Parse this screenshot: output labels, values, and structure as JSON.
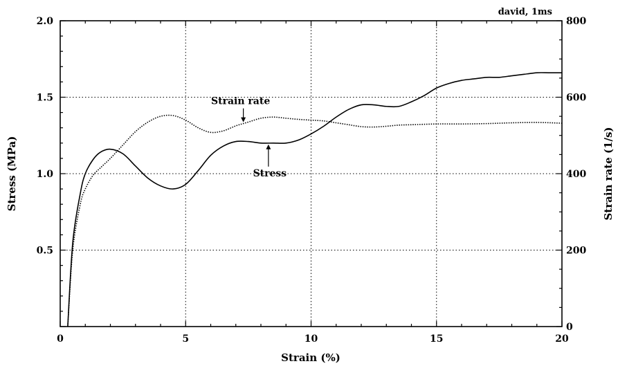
{
  "corner_label": "david, 1ms",
  "chart_data": {
    "type": "line",
    "xlabel": "Strain (%)",
    "ylabel": "Stress (MPa)",
    "y2label": "Strain rate (1/s)",
    "xlim": [
      0,
      20
    ],
    "ylim": [
      0,
      2.0
    ],
    "y2lim": [
      0,
      800
    ],
    "x_ticks": [
      0,
      5,
      10,
      15,
      20
    ],
    "x_tick_labels": [
      "0",
      "5",
      "10",
      "15",
      "20"
    ],
    "y_ticks": [
      0.5,
      1.0,
      1.5,
      2.0
    ],
    "y_tick_labels": [
      "0.5",
      "1.0",
      "1.5",
      "2.0"
    ],
    "y2_ticks": [
      0,
      200,
      400,
      600,
      800
    ],
    "y2_tick_labels": [
      "0",
      "200",
      "400",
      "600",
      "800"
    ],
    "grid": true,
    "series": [
      {
        "name": "Stress",
        "axis": "left",
        "style": "solid",
        "x": [
          0.3,
          0.5,
          0.8,
          1.0,
          1.3,
          1.6,
          2.0,
          2.5,
          3.0,
          3.5,
          4.0,
          4.5,
          5.0,
          5.5,
          6.0,
          6.5,
          7.0,
          7.5,
          8.0,
          8.5,
          9.0,
          9.5,
          10.0,
          10.5,
          11.0,
          11.5,
          12.0,
          12.5,
          13.0,
          13.5,
          14.0,
          14.5,
          15.0,
          15.5,
          16.0,
          16.5,
          17.0,
          17.5,
          18.0,
          18.5,
          19.0,
          19.5,
          20.0
        ],
        "values": [
          0.0,
          0.55,
          0.87,
          1.0,
          1.09,
          1.14,
          1.16,
          1.13,
          1.05,
          0.97,
          0.92,
          0.9,
          0.93,
          1.02,
          1.12,
          1.18,
          1.21,
          1.21,
          1.2,
          1.2,
          1.2,
          1.22,
          1.26,
          1.31,
          1.37,
          1.42,
          1.45,
          1.45,
          1.44,
          1.44,
          1.47,
          1.51,
          1.56,
          1.59,
          1.61,
          1.62,
          1.63,
          1.63,
          1.64,
          1.65,
          1.66,
          1.66,
          1.66
        ]
      },
      {
        "name": "Strain rate",
        "axis": "right",
        "style": "dotted",
        "x": [
          0.3,
          0.5,
          0.8,
          1.0,
          1.3,
          1.6,
          2.0,
          2.5,
          3.0,
          3.5,
          4.0,
          4.5,
          5.0,
          5.5,
          6.0,
          6.5,
          7.0,
          7.5,
          8.0,
          8.5,
          9.0,
          9.5,
          10.0,
          10.5,
          11.0,
          11.5,
          12.0,
          12.5,
          13.0,
          13.5,
          14.0,
          15.0,
          16.0,
          17.0,
          18.0,
          19.0,
          20.0
        ],
        "values": [
          0,
          200,
          320,
          360,
          395,
          415,
          440,
          475,
          510,
          535,
          550,
          552,
          540,
          520,
          508,
          512,
          525,
          535,
          545,
          548,
          545,
          542,
          540,
          538,
          533,
          528,
          523,
          522,
          524,
          527,
          528,
          530,
          530,
          531,
          533,
          534,
          532
        ]
      }
    ],
    "annotations": [
      {
        "text": "Strain rate",
        "target_series": "Strain rate",
        "target_x": 7.3
      },
      {
        "text": "Stress",
        "target_series": "Stress",
        "target_x": 8.3
      }
    ]
  }
}
